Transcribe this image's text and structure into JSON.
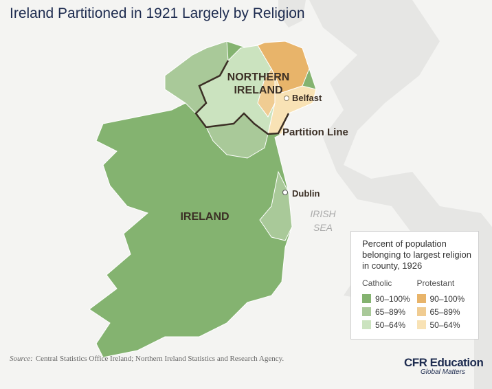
{
  "title": "Ireland Partitioned in 1921 Largely by Religion",
  "map_labels": {
    "northern_ireland": [
      "NORTHERN",
      "IRELAND"
    ],
    "belfast": "Belfast",
    "partition_line": "Partition Line",
    "dublin": "Dublin",
    "irish_sea": [
      "IRISH",
      "SEA"
    ],
    "ireland": "IRELAND"
  },
  "legend": {
    "title": "Percent of population belonging to largest religion in county, 1926",
    "groups": [
      {
        "name": "Catholic",
        "items": [
          "90–100%",
          "65–89%",
          "50–64%"
        ]
      },
      {
        "name": "Protestant",
        "items": [
          "90–100%",
          "65–89%",
          "50–64%"
        ]
      }
    ]
  },
  "source": {
    "label": "Source:",
    "text": "Central Statistics Office Ireland; Northern Ireland Statistics and Research Agency."
  },
  "brand": {
    "name": "CFR Education",
    "tagline": "Global Matters"
  }
}
